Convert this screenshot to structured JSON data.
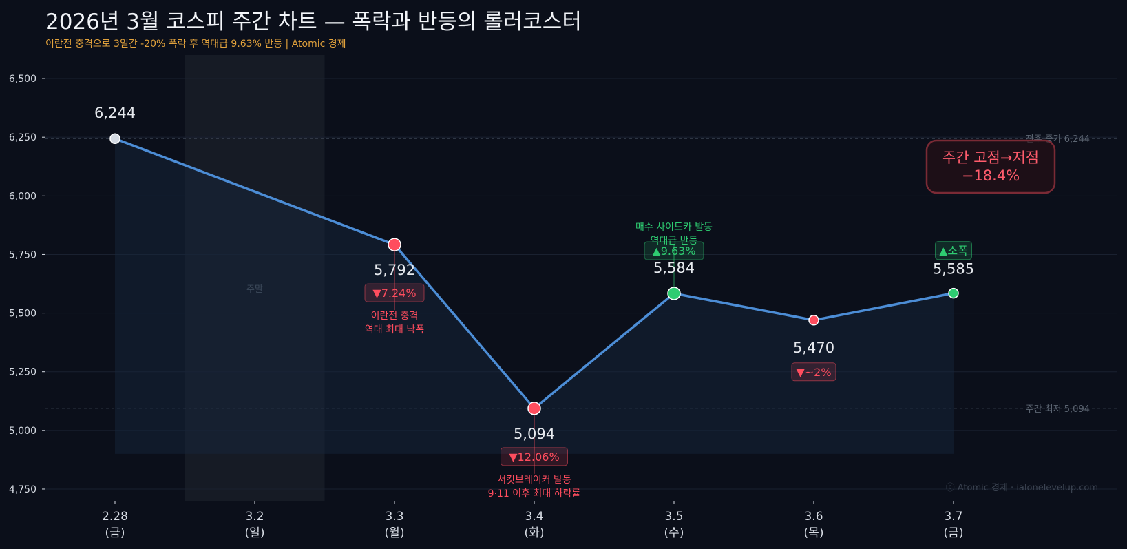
{
  "header": {
    "title": "2026년 3월 코스피 주간 차트 — 폭락과 반등의 롤러코스터",
    "subtitle": "이란전 충격으로 3일간 -20% 폭락 후 역대급 9.63% 반등 | Atomic 경제"
  },
  "chart_data": {
    "type": "line",
    "title": "2026년 3월 코스피 주간 차트 — 폭락과 반등의 롤러코스터",
    "subtitle": "이란전 충격으로 3일간 -20% 폭락 후 역대급 9.63% 반등 | Atomic 경제",
    "xlabel": "",
    "ylabel": "",
    "ylim": [
      4700,
      6600
    ],
    "yticks": [
      4750,
      5000,
      5250,
      5500,
      5750,
      6000,
      6250,
      6500
    ],
    "grid": true,
    "categories": [
      {
        "date": "2.28",
        "day": "(금)"
      },
      {
        "date": "3.2",
        "day": "(일)"
      },
      {
        "date": "3.3",
        "day": "(월)"
      },
      {
        "date": "3.4",
        "day": "(화)"
      },
      {
        "date": "3.5",
        "day": "(수)"
      },
      {
        "date": "3.6",
        "day": "(목)"
      },
      {
        "date": "3.7",
        "day": "(금)"
      }
    ],
    "points": [
      {
        "index": 0,
        "value": 6244,
        "label": "6,244",
        "status": "base"
      },
      {
        "index": 2,
        "value": 5792,
        "label": "5,792",
        "status": "down",
        "change": "▼7.24%",
        "note": [
          "이란전 충격",
          "역대 최대 낙폭"
        ]
      },
      {
        "index": 3,
        "value": 5094,
        "label": "5,094",
        "status": "down",
        "change": "▼12.06%",
        "note": [
          "서킷브레이커 발동",
          "9·11 이후 최대 하락률"
        ]
      },
      {
        "index": 4,
        "value": 5584,
        "label": "5,584",
        "status": "up",
        "change": "▲9.63%",
        "note": [
          "매수 사이드카 발동",
          "역대급 반등"
        ]
      },
      {
        "index": 5,
        "value": 5470,
        "label": "5,470",
        "status": "down",
        "change": "▼~2%"
      },
      {
        "index": 6,
        "value": 5585,
        "label": "5,585",
        "status": "up",
        "change": "▲소폭"
      }
    ],
    "weekend": {
      "index": 1,
      "label": "주말"
    },
    "reference_lines": [
      {
        "value": 6244,
        "label": "전주 종가 6,244"
      },
      {
        "value": 5094,
        "label": "주간 최저 5,094"
      }
    ],
    "summary_box": {
      "line1": "주간 고점→저점",
      "line2": "−18.4%"
    },
    "watermark": "ⓒ Atomic 경제 · ialonelevelup.com",
    "colors": {
      "line": "#4c8dd6",
      "down": "#ff4d5e",
      "up": "#2ecc71",
      "base": "#d4dae3",
      "value_text": "#e6e9ee",
      "axis_text": "#d8dde5",
      "muted": "#5d6673",
      "background": "#0b0f1a"
    }
  }
}
